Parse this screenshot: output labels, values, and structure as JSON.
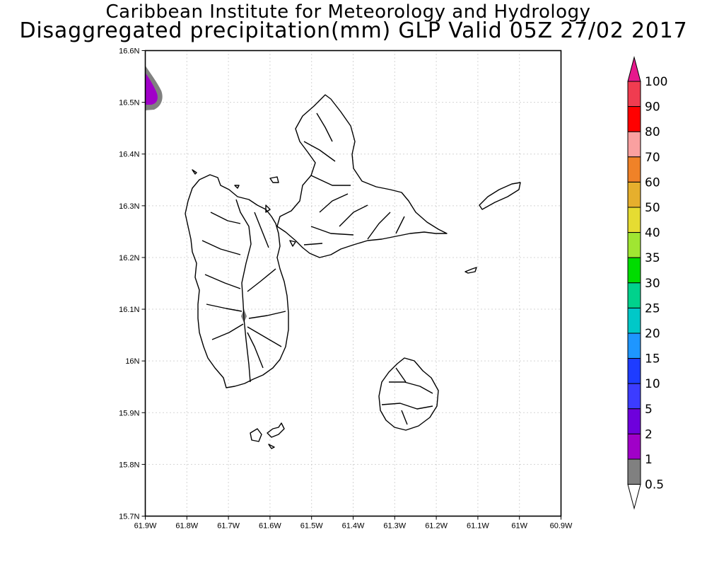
{
  "titles": {
    "line1": "Caribbean Institute for Meteorology and Hydrology",
    "line2": "Disaggregated precipitation(mm) GLP Valid 05Z 27/02 2017"
  },
  "map": {
    "lon_range": [
      -61.9,
      -60.9
    ],
    "lat_range": [
      15.7,
      16.6
    ],
    "grid": true,
    "x_ticks": [
      "61.9W",
      "61.8W",
      "61.7W",
      "61.6W",
      "61.5W",
      "61.4W",
      "61.3W",
      "61.2W",
      "61.1W",
      "61W",
      "60.9W"
    ],
    "y_ticks": [
      "16.6N",
      "16.5N",
      "16.4N",
      "16.3N",
      "16.2N",
      "16.1N",
      "16N",
      "15.9N",
      "15.8N",
      "15.7N"
    ]
  },
  "colorbar": {
    "levels": [
      "0.5",
      "1",
      "2",
      "5",
      "10",
      "15",
      "20",
      "25",
      "30",
      "35",
      "40",
      "50",
      "60",
      "70",
      "80",
      "90",
      "100"
    ],
    "colors": [
      "#ffffff",
      "#808080",
      "#a000c8",
      "#6e00dc",
      "#3c3cff",
      "#1e3cff",
      "#1e96ff",
      "#00c8c8",
      "#00d28c",
      "#00dc00",
      "#a0e632",
      "#e6dc32",
      "#e6af2d",
      "#f08228",
      "#faa0a0",
      "#ff0000",
      "#f03c50",
      "#e6188c"
    ]
  },
  "chart_data": {
    "type": "heatmap",
    "title": "Caribbean Institute for Meteorology and Hydrology",
    "subtitle": "Disaggregated precipitation(mm) GLP Valid 05Z 27/02 2017",
    "xlabel": "",
    "ylabel": "",
    "xlim": [
      -61.9,
      -60.9
    ],
    "ylim": [
      15.7,
      16.6
    ],
    "units": "mm",
    "regions": [
      {
        "location": "north-west corner near 61.9W 16.5N",
        "min_mm": 1,
        "max_mm": 5
      },
      {
        "location": "interior of Basse-Terre near 61.67W 16.08N",
        "min_mm": 1,
        "max_mm": 2
      }
    ]
  }
}
